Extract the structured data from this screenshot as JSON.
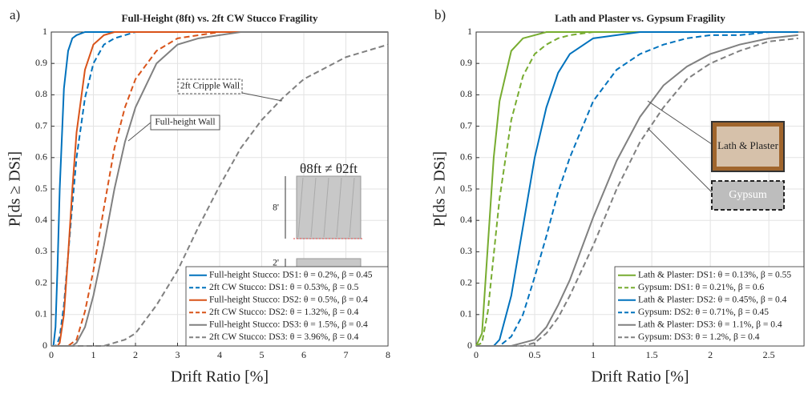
{
  "chart_data": [
    {
      "type": "line",
      "panel_label": "a)",
      "title": "Full-Height (8ft) vs. 2ft CW Stucco Fragility",
      "x_label": "Drift Ratio [%]",
      "y_label": "P[ds ≥ DSi]",
      "x": [
        0,
        0.05,
        0.1,
        0.15,
        0.2,
        0.3,
        0.4,
        0.5,
        0.6,
        0.8,
        1,
        1.25,
        1.5,
        1.75,
        2,
        2.5,
        3,
        3.5,
        4,
        4.5,
        5,
        5.5,
        6,
        7,
        8
      ],
      "series": [
        {
          "name": "Full-height Stucco: DS1: θ = 0.2%, β = 0.45",
          "color": "#0072bd",
          "dash": false,
          "values": [
            0,
            0,
            0.06,
            0.26,
            0.5,
            0.82,
            0.94,
            0.98,
            0.99,
            1,
            1,
            1,
            1,
            1,
            1,
            1,
            1,
            1,
            1,
            1,
            1,
            1,
            1,
            1,
            1
          ]
        },
        {
          "name": "2ft CW Stucco: DS1: θ = 0.53%, β = 0.5",
          "color": "#0072bd",
          "dash": true,
          "values": [
            0,
            0,
            0,
            0.01,
            0.03,
            0.13,
            0.29,
            0.45,
            0.6,
            0.79,
            0.9,
            0.96,
            0.98,
            0.99,
            1,
            1,
            1,
            1,
            1,
            1,
            1,
            1,
            1,
            1,
            1
          ]
        },
        {
          "name": "Full-height Stucco: DS2: θ = 0.5%, β = 0.4",
          "color": "#d95319",
          "dash": false,
          "values": [
            0,
            0,
            0,
            0,
            0.01,
            0.1,
            0.29,
            0.5,
            0.68,
            0.88,
            0.96,
            0.99,
            1,
            1,
            1,
            1,
            1,
            1,
            1,
            1,
            1,
            1,
            1,
            1,
            1
          ]
        },
        {
          "name": "2ft CW Stucco: DS2: θ = 1.32%, β = 0.4",
          "color": "#d95319",
          "dash": true,
          "values": [
            0,
            0,
            0,
            0,
            0,
            0,
            0,
            0.01,
            0.02,
            0.11,
            0.24,
            0.44,
            0.63,
            0.76,
            0.85,
            0.94,
            0.98,
            0.99,
            1,
            1,
            1,
            1,
            1,
            1,
            1
          ]
        },
        {
          "name": "Full-height Stucco: DS3: θ = 1.5%, β = 0.4",
          "color": "#808080",
          "dash": false,
          "values": [
            0,
            0,
            0,
            0,
            0,
            0,
            0,
            0,
            0.01,
            0.06,
            0.16,
            0.32,
            0.5,
            0.65,
            0.76,
            0.9,
            0.96,
            0.98,
            0.99,
            1,
            1,
            1,
            1,
            1,
            1
          ]
        },
        {
          "name": "2ft CW Stucco: DS3: θ = 3.96%, β = 0.4",
          "color": "#808080",
          "dash": true,
          "values": [
            0,
            0,
            0,
            0,
            0,
            0,
            0,
            0,
            0,
            0,
            0,
            0,
            0.01,
            0.02,
            0.04,
            0.13,
            0.24,
            0.38,
            0.51,
            0.63,
            0.72,
            0.79,
            0.85,
            0.92,
            0.96
          ]
        }
      ],
      "xlim": [
        0,
        8
      ],
      "ylim": [
        0,
        1
      ],
      "xticks": [
        0,
        1,
        2,
        3,
        4,
        5,
        6,
        7,
        8
      ],
      "yticks": [
        0,
        0.1,
        0.2,
        0.3,
        0.4,
        0.5,
        0.6,
        0.7,
        0.8,
        0.9,
        1
      ],
      "grid": true,
      "legend": "lower right",
      "annotations": [
        "2ft Cripple Wall",
        "Full-height Wall",
        "θ8ft ≠ θ2ft",
        "8'",
        "2'"
      ]
    },
    {
      "type": "line",
      "panel_label": "b)",
      "title": "Lath and Plaster vs. Gypsum Fragility",
      "x_label": "Drift Ratio [%]",
      "y_label": "P[ds ≥ DSi]",
      "x": [
        0,
        0.05,
        0.1,
        0.15,
        0.2,
        0.3,
        0.4,
        0.5,
        0.6,
        0.7,
        0.8,
        1,
        1.2,
        1.4,
        1.6,
        1.8,
        2,
        2.25,
        2.5,
        2.75
      ],
      "series": [
        {
          "name": "Lath & Plaster: DS1: θ = 0.13%, β = 0.55",
          "color": "#77ac30",
          "dash": false,
          "values": [
            0,
            0.04,
            0.32,
            0.6,
            0.78,
            0.94,
            0.98,
            0.99,
            1,
            1,
            1,
            1,
            1,
            1,
            1,
            1,
            1,
            1,
            1,
            1
          ]
        },
        {
          "name": "Gypsum: DS1: θ = 0.21%, β = 0.6",
          "color": "#77ac30",
          "dash": true,
          "values": [
            0,
            0.01,
            0.11,
            0.29,
            0.47,
            0.72,
            0.86,
            0.93,
            0.96,
            0.98,
            0.99,
            1,
            1,
            1,
            1,
            1,
            1,
            1,
            1,
            1
          ]
        },
        {
          "name": "Lath & Plaster: DS2: θ = 0.45%, β = 0.4",
          "color": "#0072bd",
          "dash": false,
          "values": [
            0,
            0,
            0,
            0,
            0.02,
            0.16,
            0.38,
            0.6,
            0.76,
            0.87,
            0.93,
            0.98,
            0.99,
            1,
            1,
            1,
            1,
            1,
            1,
            1
          ]
        },
        {
          "name": "Gypsum: DS2: θ = 0.71%, β = 0.45",
          "color": "#0072bd",
          "dash": true,
          "values": [
            0,
            0,
            0,
            0,
            0,
            0.03,
            0.1,
            0.22,
            0.35,
            0.49,
            0.6,
            0.78,
            0.88,
            0.93,
            0.96,
            0.98,
            0.99,
            0.99,
            1,
            1
          ]
        },
        {
          "name": "Lath & Plaster: DS3: θ = 1.1%, β = 0.4",
          "color": "#808080",
          "dash": false,
          "values": [
            0,
            0,
            0,
            0,
            0,
            0,
            0.01,
            0.02,
            0.06,
            0.13,
            0.21,
            0.41,
            0.59,
            0.73,
            0.83,
            0.89,
            0.93,
            0.96,
            0.98,
            0.99
          ]
        },
        {
          "name": "Gypsum: DS3: θ = 1.2%, β = 0.4",
          "color": "#808080",
          "dash": true,
          "values": [
            0,
            0,
            0,
            0,
            0,
            0,
            0,
            0.01,
            0.04,
            0.09,
            0.16,
            0.32,
            0.5,
            0.65,
            0.76,
            0.85,
            0.9,
            0.94,
            0.97,
            0.98
          ]
        }
      ],
      "xlim": [
        0,
        2.8
      ],
      "ylim": [
        0,
        1
      ],
      "xticks": [
        0,
        0.5,
        1,
        1.5,
        2,
        2.5
      ],
      "yticks": [
        0,
        0.1,
        0.2,
        0.3,
        0.4,
        0.5,
        0.6,
        0.7,
        0.8,
        0.9,
        1
      ],
      "grid": true,
      "legend": "lower right",
      "annotations": [
        "Lath & Plaster",
        "Gypsum"
      ]
    }
  ]
}
